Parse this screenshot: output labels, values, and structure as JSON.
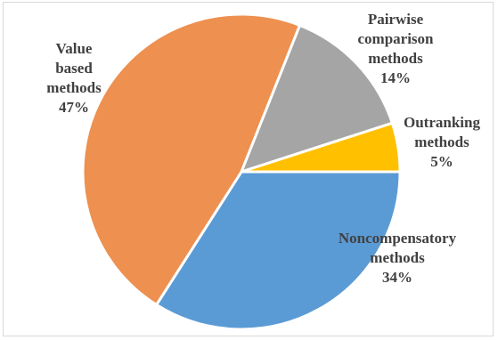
{
  "chart_data": {
    "type": "pie",
    "title": "",
    "slices": [
      {
        "name": "Noncompensatory methods",
        "label_lines": [
          "Noncompensatory",
          "methods"
        ],
        "value": 34,
        "pct_label": "34%",
        "color": "#5b9bd5"
      },
      {
        "name": "Value based methods",
        "label_lines": [
          "Value",
          "based",
          "methods"
        ],
        "value": 47,
        "pct_label": "47%",
        "color": "#ed9050"
      },
      {
        "name": "Pairwise comparison methods",
        "label_lines": [
          "Pairwise",
          "comparison",
          "methods"
        ],
        "value": 14,
        "pct_label": "14%",
        "color": "#a5a5a5"
      },
      {
        "name": "Outranking methods",
        "label_lines": [
          "Outranking",
          "methods"
        ],
        "value": 5,
        "pct_label": "5%",
        "color": "#ffc000"
      }
    ],
    "start_direction": "east",
    "order": "clockwise",
    "legend": "none",
    "data_labels": "category name and percentage"
  }
}
